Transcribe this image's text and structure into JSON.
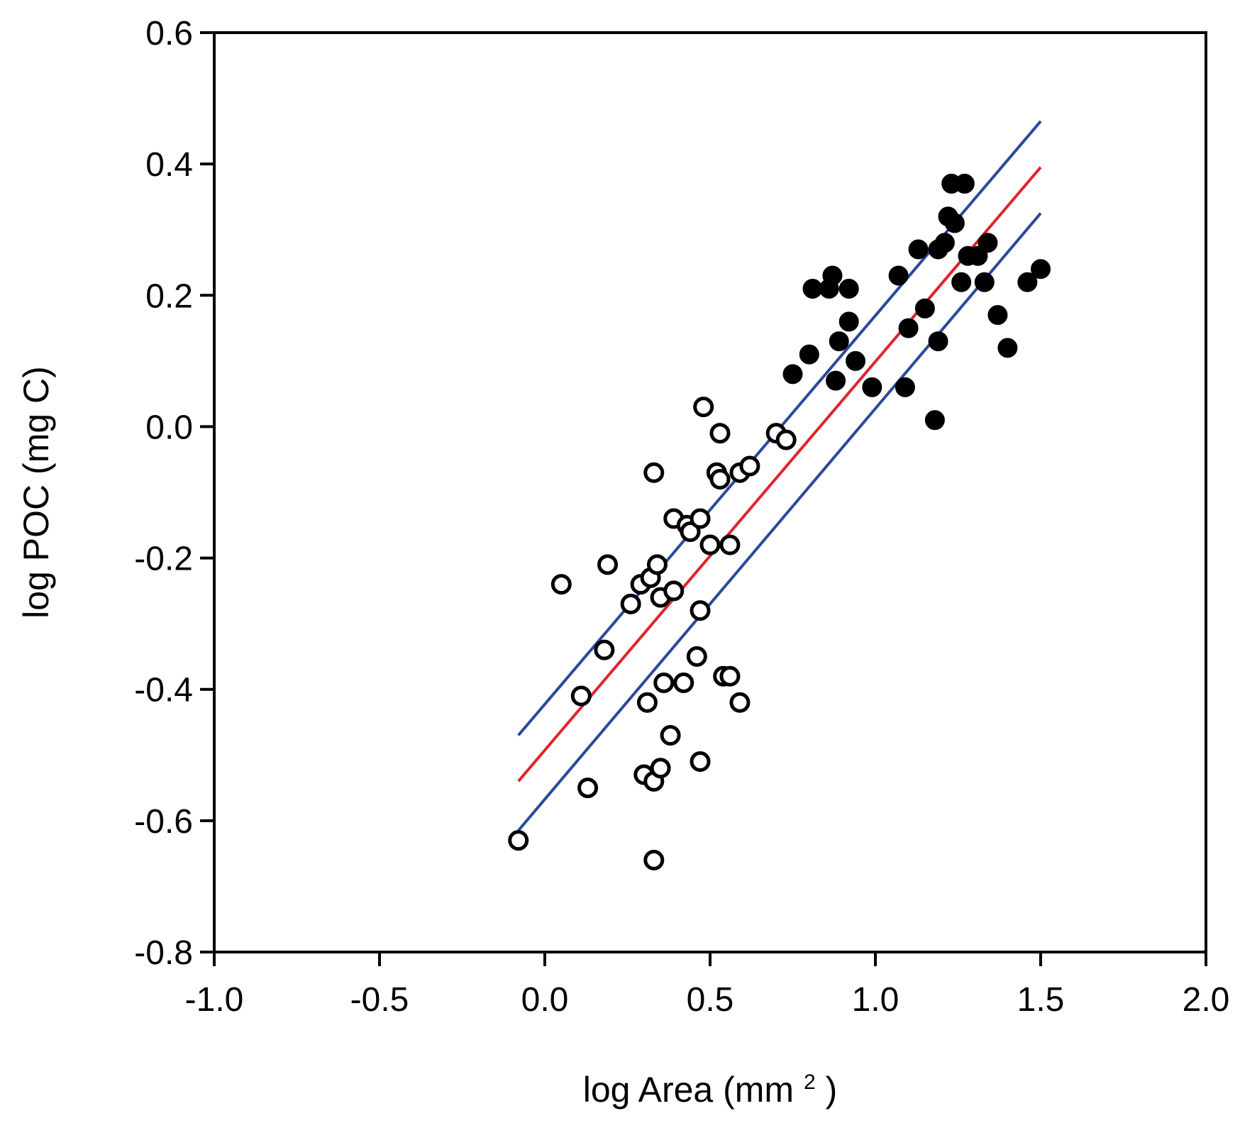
{
  "chart_data": {
    "type": "scatter",
    "xlabel": "log Area (mm",
    "xlabel_superscript": "2",
    "xlabel_close": ")",
    "ylabel": "log POC (mg C)",
    "xlim": [
      -1.0,
      2.0
    ],
    "ylim": [
      -0.8,
      0.6
    ],
    "x_ticks": [
      -1.0,
      -0.5,
      0.0,
      0.5,
      1.0,
      1.5,
      2.0
    ],
    "x_tick_labels": [
      "-1.0",
      "-0.5",
      "0.0",
      "0.5",
      "1.0",
      "1.5",
      "2.0"
    ],
    "y_ticks": [
      -0.8,
      -0.6,
      -0.4,
      -0.2,
      0.0,
      0.2,
      0.4,
      0.6
    ],
    "y_tick_labels": [
      "-0.8",
      "-0.6",
      "-0.4",
      "-0.2",
      "0.0",
      "0.2",
      "0.4",
      "0.6"
    ],
    "grid": false,
    "series": [
      {
        "name": "open circles",
        "marker": "open-circle",
        "color": "#000000",
        "points": [
          [
            -0.08,
            -0.63
          ],
          [
            0.05,
            -0.24
          ],
          [
            0.11,
            -0.41
          ],
          [
            0.13,
            -0.55
          ],
          [
            0.18,
            -0.34
          ],
          [
            0.19,
            -0.21
          ],
          [
            0.26,
            -0.27
          ],
          [
            0.29,
            -0.24
          ],
          [
            0.3,
            -0.53
          ],
          [
            0.31,
            -0.42
          ],
          [
            0.32,
            -0.23
          ],
          [
            0.33,
            -0.07
          ],
          [
            0.33,
            -0.54
          ],
          [
            0.33,
            -0.66
          ],
          [
            0.34,
            -0.21
          ],
          [
            0.35,
            -0.26
          ],
          [
            0.35,
            -0.52
          ],
          [
            0.36,
            -0.39
          ],
          [
            0.38,
            -0.47
          ],
          [
            0.39,
            -0.25
          ],
          [
            0.39,
            -0.14
          ],
          [
            0.42,
            -0.39
          ],
          [
            0.43,
            -0.15
          ],
          [
            0.44,
            -0.16
          ],
          [
            0.46,
            -0.35
          ],
          [
            0.47,
            -0.14
          ],
          [
            0.47,
            -0.28
          ],
          [
            0.47,
            -0.51
          ],
          [
            0.48,
            0.03
          ],
          [
            0.5,
            -0.18
          ],
          [
            0.52,
            -0.07
          ],
          [
            0.53,
            -0.08
          ],
          [
            0.53,
            -0.01
          ],
          [
            0.54,
            -0.38
          ],
          [
            0.56,
            -0.38
          ],
          [
            0.56,
            -0.18
          ],
          [
            0.59,
            -0.42
          ],
          [
            0.59,
            -0.07
          ],
          [
            0.62,
            -0.06
          ],
          [
            0.7,
            -0.01
          ],
          [
            0.73,
            -0.02
          ]
        ]
      },
      {
        "name": "filled circles",
        "marker": "filled-circle",
        "color": "#000000",
        "points": [
          [
            0.75,
            0.08
          ],
          [
            0.8,
            0.11
          ],
          [
            0.81,
            0.21
          ],
          [
            0.86,
            0.21
          ],
          [
            0.87,
            0.23
          ],
          [
            0.88,
            0.07
          ],
          [
            0.89,
            0.13
          ],
          [
            0.92,
            0.21
          ],
          [
            0.92,
            0.16
          ],
          [
            0.94,
            0.1
          ],
          [
            0.99,
            0.06
          ],
          [
            1.07,
            0.23
          ],
          [
            1.09,
            0.06
          ],
          [
            1.1,
            0.15
          ],
          [
            1.13,
            0.27
          ],
          [
            1.15,
            0.18
          ],
          [
            1.18,
            0.01
          ],
          [
            1.19,
            0.13
          ],
          [
            1.19,
            0.27
          ],
          [
            1.21,
            0.28
          ],
          [
            1.22,
            0.32
          ],
          [
            1.23,
            0.37
          ],
          [
            1.24,
            0.31
          ],
          [
            1.26,
            0.22
          ],
          [
            1.27,
            0.37
          ],
          [
            1.28,
            0.26
          ],
          [
            1.31,
            0.26
          ],
          [
            1.33,
            0.22
          ],
          [
            1.34,
            0.28
          ],
          [
            1.37,
            0.17
          ],
          [
            1.4,
            0.12
          ],
          [
            1.46,
            0.22
          ],
          [
            1.5,
            0.24
          ]
        ]
      }
    ],
    "lines": [
      {
        "name": "regression line",
        "color": "#e0242b",
        "points": [
          [
            -0.08,
            -0.54
          ],
          [
            1.5,
            0.395
          ]
        ]
      },
      {
        "name": "upper confidence band",
        "color": "#2a4a9a",
        "points": [
          [
            -0.08,
            -0.47
          ],
          [
            1.5,
            0.465
          ]
        ]
      },
      {
        "name": "lower confidence band",
        "color": "#2a4a9a",
        "points": [
          [
            -0.08,
            -0.615
          ],
          [
            1.5,
            0.325
          ]
        ]
      }
    ]
  }
}
